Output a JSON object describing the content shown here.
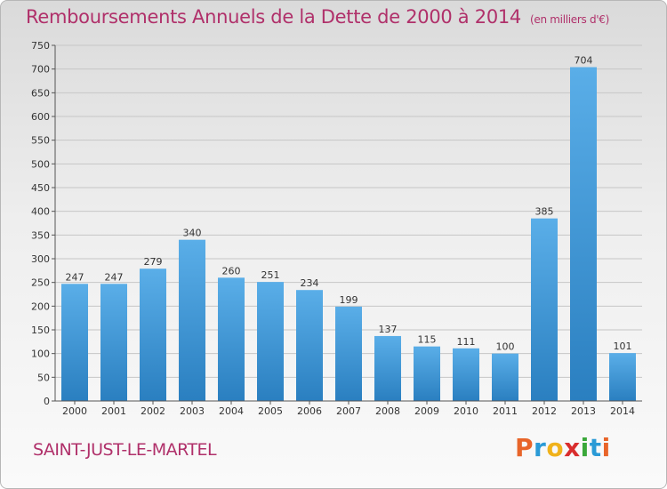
{
  "header": {
    "title": "Remboursements Annuels de la Dette de 2000 à 2014",
    "subtitle": "(en milliers d'€)"
  },
  "footer": {
    "commune": "SAINT-JUST-LE-MARTEL",
    "logo_text": "Proxiti",
    "logo_colors": [
      "#e8652a",
      "#2a9ad6",
      "#f0b21b",
      "#d92d2d",
      "#3aa83a",
      "#2a9ad6",
      "#e8652a"
    ]
  },
  "chart_data": {
    "type": "bar",
    "title": "Remboursements Annuels de la Dette de 2000 à 2014",
    "subtitle": "(en milliers d'€)",
    "categories": [
      "2000",
      "2001",
      "2002",
      "2003",
      "2004",
      "2005",
      "2006",
      "2007",
      "2008",
      "2009",
      "2010",
      "2011",
      "2012",
      "2013",
      "2014"
    ],
    "values": [
      247,
      247,
      279,
      340,
      260,
      251,
      234,
      199,
      137,
      115,
      111,
      100,
      385,
      704,
      101
    ],
    "ylim": [
      0,
      750
    ],
    "yticks": [
      0,
      50,
      100,
      150,
      200,
      250,
      300,
      350,
      400,
      450,
      500,
      550,
      600,
      650,
      700,
      750
    ],
    "grid": true,
    "bar_color_top": "#5aaee8",
    "bar_color_bottom": "#2a7fc0"
  }
}
